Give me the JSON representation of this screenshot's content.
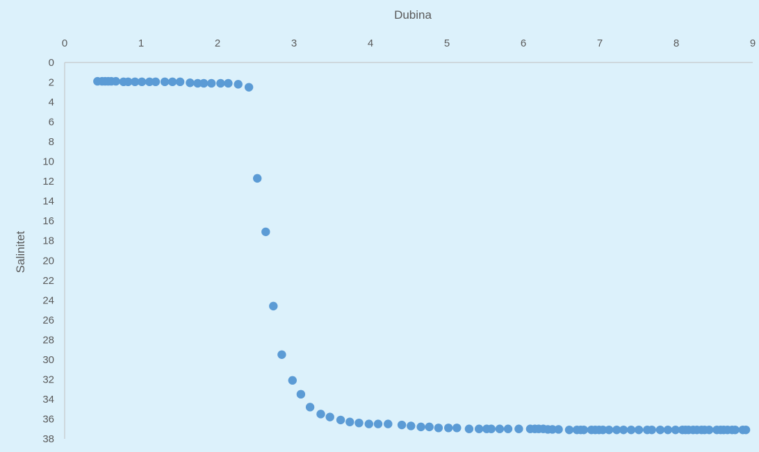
{
  "chart_data": {
    "type": "scatter",
    "title": "",
    "xlabel": "Dubina",
    "ylabel": "Salinitet",
    "xlim": [
      0,
      9
    ],
    "ylim": [
      0,
      38
    ],
    "x_axis_position": "top",
    "y_axis_inverted": true,
    "xticks": [
      0,
      1,
      2,
      3,
      4,
      5,
      6,
      7,
      8,
      9
    ],
    "yticks": [
      0,
      2,
      4,
      6,
      8,
      10,
      12,
      14,
      16,
      18,
      20,
      22,
      24,
      26,
      28,
      30,
      32,
      34,
      36,
      38
    ],
    "grid": false,
    "legend": "none",
    "colors": {
      "marker": "#5b9bd5",
      "background": "#dcf1fb",
      "axis": "#bfbfbf",
      "text": "#595959"
    },
    "series": [
      {
        "x": [
          0.43,
          0.49,
          0.53,
          0.57,
          0.61,
          0.67,
          0.77,
          0.83,
          0.92,
          1.01,
          1.11,
          1.19,
          1.31,
          1.41,
          1.51,
          1.64,
          1.74,
          1.82,
          1.92,
          2.04,
          2.14,
          2.27,
          2.41,
          2.52,
          2.63,
          2.73,
          2.84,
          2.98,
          3.09,
          3.21,
          3.35,
          3.47,
          3.61,
          3.73,
          3.85,
          3.98,
          4.1,
          4.23,
          4.41,
          4.53,
          4.66,
          4.77,
          4.89,
          5.02,
          5.13,
          5.29,
          5.42,
          5.52,
          5.58,
          5.69,
          5.8,
          5.94,
          6.09,
          6.15,
          6.2,
          6.26,
          6.32,
          6.38,
          6.46,
          6.6,
          6.7,
          6.75,
          6.79,
          6.89,
          6.94,
          6.99,
          7.04,
          7.12,
          7.22,
          7.31,
          7.41,
          7.51,
          7.62,
          7.68,
          7.79,
          7.89,
          7.99,
          8.08,
          8.12,
          8.16,
          8.22,
          8.27,
          8.33,
          8.37,
          8.43,
          8.53,
          8.58,
          8.62,
          8.67,
          8.73,
          8.77,
          8.87,
          8.91
        ],
        "y": [
          1.9,
          1.9,
          1.9,
          1.9,
          1.9,
          1.9,
          1.95,
          1.95,
          1.95,
          1.95,
          1.95,
          1.95,
          1.95,
          1.95,
          1.95,
          2.05,
          2.1,
          2.1,
          2.1,
          2.1,
          2.1,
          2.2,
          2.5,
          11.7,
          17.1,
          24.6,
          29.5,
          32.1,
          33.5,
          34.8,
          35.5,
          35.8,
          36.1,
          36.3,
          36.4,
          36.5,
          36.5,
          36.5,
          36.6,
          36.7,
          36.8,
          36.8,
          36.9,
          36.9,
          36.9,
          37.0,
          37.0,
          37.0,
          37.0,
          37.0,
          37.0,
          37.0,
          37.0,
          37.0,
          37.0,
          37.0,
          37.05,
          37.05,
          37.05,
          37.1,
          37.1,
          37.1,
          37.1,
          37.1,
          37.1,
          37.1,
          37.1,
          37.1,
          37.1,
          37.1,
          37.1,
          37.1,
          37.1,
          37.1,
          37.1,
          37.1,
          37.1,
          37.1,
          37.1,
          37.1,
          37.1,
          37.1,
          37.1,
          37.1,
          37.1,
          37.1,
          37.1,
          37.1,
          37.1,
          37.1,
          37.1,
          37.1,
          37.1
        ]
      }
    ]
  }
}
